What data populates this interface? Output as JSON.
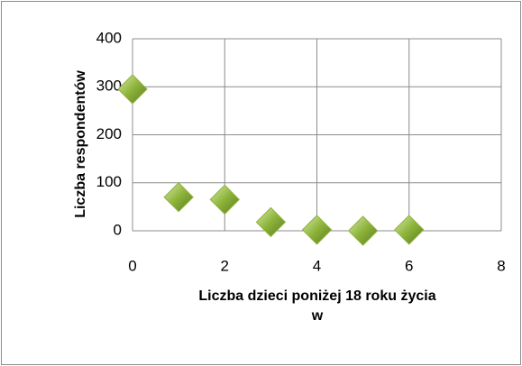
{
  "chart_data": {
    "type": "scatter",
    "x_label": "Liczba dzieci poniżej 18 roku życia w",
    "y_label": "Liczba respondentów",
    "series": [
      {
        "name": "Liczba respondentów",
        "color": "#8db33a",
        "x": [
          0,
          1,
          2,
          3,
          4,
          5,
          6
        ],
        "values": [
          295,
          70,
          65,
          18,
          2,
          0,
          2
        ]
      }
    ],
    "xlim": [
      0,
      8
    ],
    "xticks": [
      0,
      2,
      4,
      6,
      8
    ],
    "ylim": [
      0,
      400
    ],
    "yticks": [
      0,
      100,
      200,
      300,
      400
    ],
    "grid": true
  }
}
